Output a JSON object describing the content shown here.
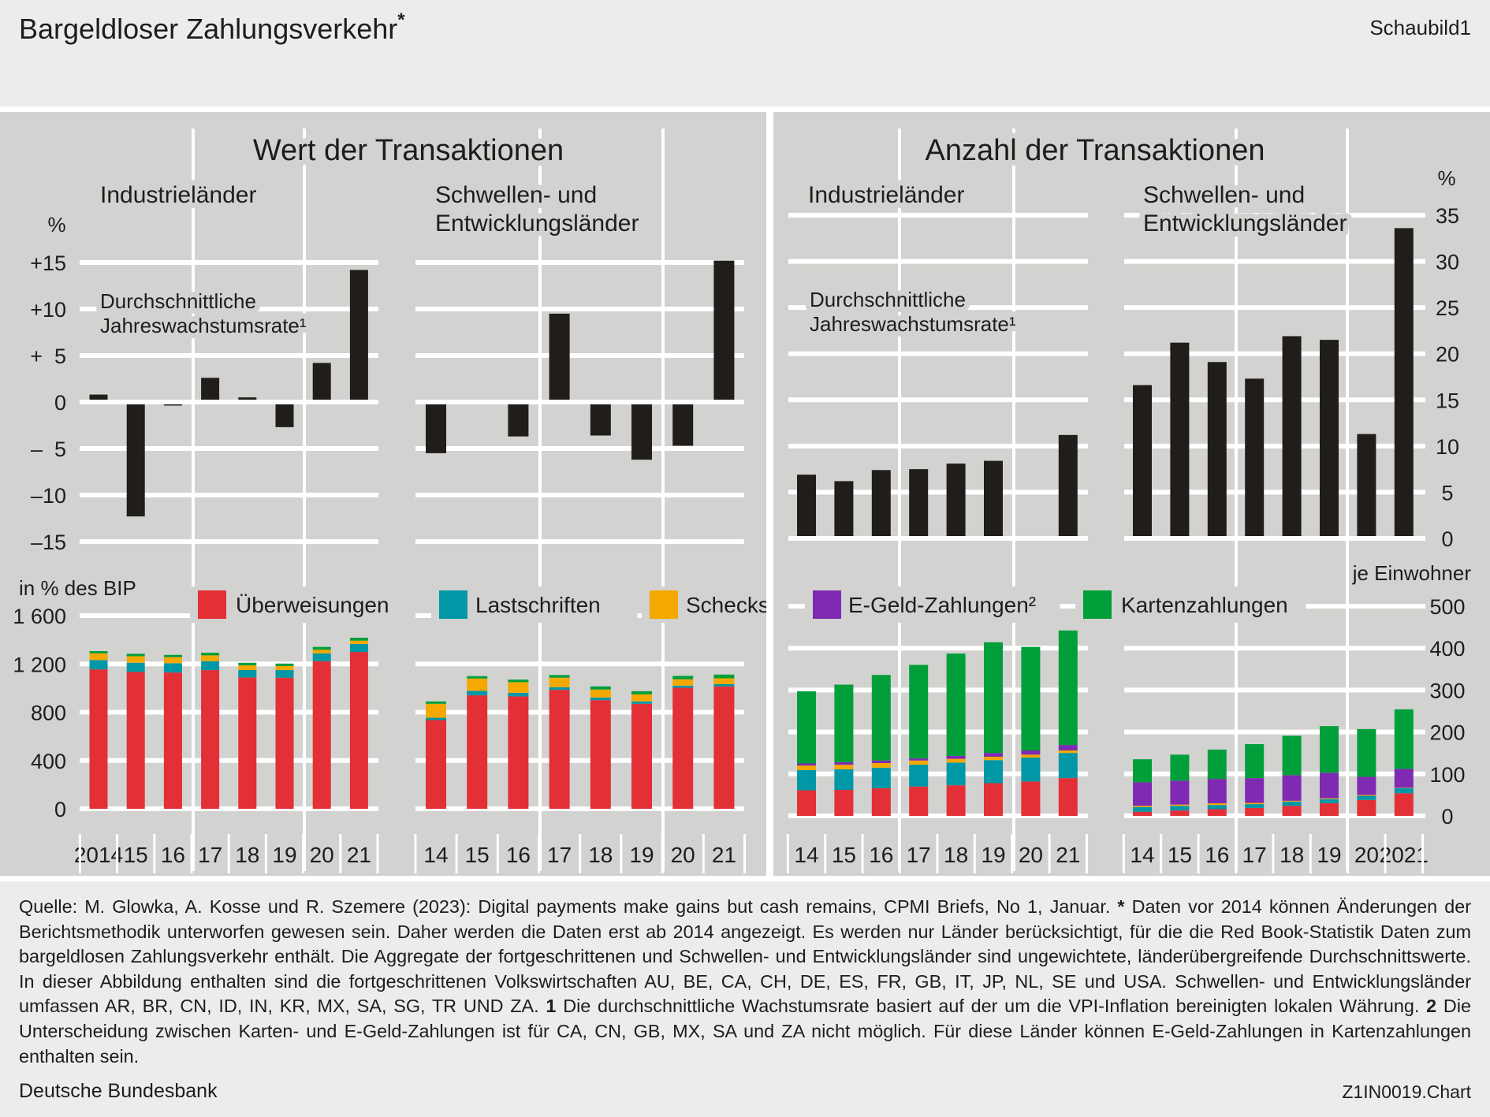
{
  "header": {
    "title": "Bargeldloser Zahlungsverkehr",
    "title_mark": "*",
    "figure_label": "Schaubild1"
  },
  "sections": {
    "value": {
      "title": "Wert der Transaktionen",
      "industrial": "Industrieländer",
      "emerging_line1": "Schwellen- und",
      "emerging_line2": "Entwicklungsländer",
      "annotation_line1": "Durchschnittliche",
      "annotation_line2": "Jahreswachstumsrate¹",
      "top_unit": "%",
      "bottom_unit": "in % des BIP"
    },
    "count": {
      "title": "Anzahl der Transaktionen",
      "industrial": "Industrieländer",
      "emerging_line1": "Schwellen- und",
      "emerging_line2": "Entwicklungsländer",
      "annotation_line1": "Durchschnittliche",
      "annotation_line2": "Jahreswachstumsrate¹",
      "top_unit": "%",
      "bottom_unit": "je Einwohner"
    }
  },
  "legend": [
    {
      "label": "Überweisungen",
      "color": "#e32f36"
    },
    {
      "label": "Lastschriften",
      "color": "#0097a7"
    },
    {
      "label": "Schecks",
      "color": "#f5a800"
    },
    {
      "label": "E-Geld-Zahlungen²",
      "color": "#7f2ab3"
    },
    {
      "label": "Kartenzahlungen",
      "color": "#009f3a"
    }
  ],
  "colors": {
    "growth_bar": "#201d1b",
    "panel_background": "#d2d2d0",
    "grid": "#ffffff"
  },
  "chart_data": [
    {
      "type": "bar",
      "group": "Wert der Transaktionen",
      "region": "Industrieländer",
      "values": [
        0.8,
        -12.3,
        -0.3,
        2.6,
        0.5,
        -2.7,
        4.2,
        14.2
      ],
      "ylim": [
        -15,
        15
      ],
      "y_ticks": [
        15,
        10,
        5,
        0,
        -5,
        -10,
        -15
      ],
      "y_tick_labels": [
        "+15",
        "+10",
        "+  5",
        "0",
        "–  5",
        "–10",
        "–15"
      ],
      "grid": true
    },
    {
      "type": "bar",
      "group": "Wert der Transaktionen",
      "region": "Schwellen- und Entwicklungsländer",
      "values": [
        -5.5,
        null,
        -3.7,
        9.5,
        -3.6,
        -6.2,
        -4.7,
        15.2
      ],
      "ylim": [
        -15,
        15
      ],
      "y_ticks": [
        15,
        10,
        5,
        0,
        -5,
        -10,
        -15
      ],
      "grid": true
    },
    {
      "type": "bar",
      "group": "Anzahl der Transaktionen",
      "region": "Industrieländer",
      "values": [
        6.9,
        6.2,
        7.4,
        7.5,
        8.1,
        8.4,
        null,
        11.2
      ],
      "ylim": [
        0,
        35
      ],
      "y_ticks": [
        35,
        30,
        25,
        20,
        15,
        10,
        5,
        0
      ],
      "grid": true
    },
    {
      "type": "bar",
      "group": "Anzahl der Transaktionen",
      "region": "Schwellen- und Entwicklungsländer",
      "values": [
        16.6,
        21.2,
        19.1,
        17.3,
        21.9,
        21.5,
        11.3,
        33.6
      ],
      "ylim": [
        0,
        35
      ],
      "y_ticks": [
        35,
        30,
        25,
        20,
        15,
        10,
        5,
        0
      ],
      "y_tick_labels": [
        "35",
        "30",
        "25",
        "20",
        "15",
        "10",
        "5",
        "0"
      ],
      "grid": true
    },
    {
      "type": "bar",
      "stacked": true,
      "group": "Wert der Transaktionen",
      "region": "Industrieländer",
      "categories": [
        "2014",
        "15",
        "16",
        "17",
        "18",
        "19",
        "20",
        "21"
      ],
      "ylim": [
        0,
        1600
      ],
      "y_ticks": [
        1600,
        1200,
        800,
        400,
        0
      ],
      "y_tick_labels": [
        "1 600",
        "1 200",
        "800",
        "400",
        "0"
      ],
      "grid": true,
      "series": [
        {
          "name": "Überweisungen",
          "color": "#e32f36",
          "values": [
            1155,
            1134,
            1129,
            1149,
            1088,
            1086,
            1223,
            1299
          ]
        },
        {
          "name": "Lastschriften",
          "color": "#0097a7",
          "values": [
            77,
            76,
            77,
            74,
            61,
            63,
            65,
            66
          ]
        },
        {
          "name": "Schecks",
          "color": "#f5a800",
          "values": [
            56,
            54,
            50,
            48,
            39,
            33,
            29,
            28
          ]
        },
        {
          "name": "Kartenzahlungen",
          "color": "#009f3a",
          "values": [
            18,
            20,
            19,
            22,
            22,
            21,
            24,
            24
          ]
        }
      ]
    },
    {
      "type": "bar",
      "stacked": true,
      "group": "Wert der Transaktionen",
      "region": "Schwellen- und Entwicklungsländer",
      "categories": [
        "14",
        "15",
        "16",
        "17",
        "18",
        "19",
        "20",
        "21"
      ],
      "ylim": [
        0,
        1600
      ],
      "y_ticks": [
        1600,
        1200,
        800,
        400,
        0
      ],
      "grid": true,
      "series": [
        {
          "name": "Überweisungen",
          "color": "#e32f36",
          "values": [
            735,
            940,
            931,
            985,
            900,
            870,
            1003,
            1014
          ]
        },
        {
          "name": "Lastschriften",
          "color": "#0097a7",
          "values": [
            19,
            37,
            30,
            22,
            22,
            19,
            17,
            19
          ]
        },
        {
          "name": "Schecks",
          "color": "#f5a800",
          "values": [
            116,
            102,
            88,
            79,
            66,
            59,
            53,
            48
          ]
        },
        {
          "name": "Kartenzahlungen",
          "color": "#009f3a",
          "values": [
            19,
            20,
            21,
            22,
            26,
            26,
            28,
            31
          ]
        }
      ]
    },
    {
      "type": "bar",
      "stacked": true,
      "group": "Anzahl der Transaktionen",
      "region": "Industrieländer",
      "categories": [
        "14",
        "15",
        "16",
        "17",
        "18",
        "19",
        "20",
        "21"
      ],
      "ylim": [
        0,
        500
      ],
      "y_ticks": [
        500,
        400,
        300,
        200,
        100,
        0
      ],
      "grid": true,
      "series": [
        {
          "name": "Überweisungen",
          "color": "#e32f36",
          "values": [
            61,
            62,
            66,
            70,
            73,
            78,
            82,
            90
          ]
        },
        {
          "name": "Lastschriften",
          "color": "#0097a7",
          "values": [
            48,
            49,
            49,
            52,
            54,
            55,
            57,
            60
          ]
        },
        {
          "name": "Schecks",
          "color": "#f5a800",
          "values": [
            11,
            11,
            11,
            10,
            9,
            8,
            7,
            6
          ]
        },
        {
          "name": "E-Geld-Zahlungen²",
          "color": "#7f2ab3",
          "values": [
            5,
            6,
            6,
            5,
            7,
            9,
            10,
            13
          ]
        },
        {
          "name": "Kartenzahlungen",
          "color": "#009f3a",
          "values": [
            172,
            185,
            204,
            223,
            244,
            264,
            247,
            273
          ]
        }
      ]
    },
    {
      "type": "bar",
      "stacked": true,
      "group": "Anzahl der Transaktionen",
      "region": "Schwellen- und Entwicklungsländer",
      "categories": [
        "14",
        "15",
        "16",
        "17",
        "18",
        "19",
        "20",
        "2021"
      ],
      "ylim": [
        0,
        500
      ],
      "y_ticks": [
        500,
        400,
        300,
        200,
        100,
        0
      ],
      "y_tick_labels": [
        "500",
        "400",
        "300",
        "200",
        "100",
        "0"
      ],
      "grid": true,
      "series": [
        {
          "name": "Überweisungen",
          "color": "#e32f36",
          "values": [
            10,
            13,
            16,
            19,
            24,
            30,
            38,
            54
          ]
        },
        {
          "name": "Lastschriften",
          "color": "#0097a7",
          "values": [
            11,
            11,
            10,
            9,
            10,
            10,
            10,
            12
          ]
        },
        {
          "name": "Schecks",
          "color": "#f5a800",
          "values": [
            3,
            3,
            4,
            3,
            2,
            2,
            2,
            1
          ]
        },
        {
          "name": "E-Geld-Zahlungen²",
          "color": "#7f2ab3",
          "values": [
            56,
            57,
            58,
            59,
            61,
            61,
            43,
            45
          ]
        },
        {
          "name": "Kartenzahlungen",
          "color": "#009f3a",
          "values": [
            55,
            62,
            70,
            81,
            94,
            111,
            114,
            142
          ]
        }
      ]
    }
  ],
  "footer": {
    "source": "Quelle: M. Glowka, A. Kosse und R. Szemere (2023): Digital payments make gains but cash remains, CPMI Briefs, No 1, Januar.",
    "note_star_marker": "*",
    "note_star": "Daten vor 2014 können Änderungen der Berichtsmethodik unterworfen gewesen sein. Daher werden die Daten erst ab 2014 angezeigt. Es werden nur Länder berücksichtigt, für die die Red Book-Statistik Daten zum bargeldlosen Zahlungsverkehr enthält. Die Aggregate der fortgeschrittenen und Schwellen- und Entwicklungsländer sind ungewichtete, länderübergreifende Durchschnittswerte. In dieser Abbildung enthalten sind die fortgeschrittenen Volkswirtschaften AU, BE, CA, CH, DE, ES, FR, GB, IT, JP, NL, SE und USA. Schwellen- und Entwicklungsländer umfassen AR, BR, CN, ID, IN, KR, MX, SA, SG, TR UND ZA.",
    "note1_marker": "1",
    "note1": "Die durchschnittli­che Wachstumsrate basiert auf der um die VPI-Inflation bereinigten lokalen Währung.",
    "note2_marker": "2",
    "note2": "Die Unterscheidung zwischen Karten- und E-Geld-Zahlungen ist für CA, CN, GB, MX, SA und ZA nicht möglich. Für diese Länder können E-Geld-Zahlungen in Kartenzahlungen enthalten sein.",
    "publisher": "Deutsche Bundesbank",
    "chart_id": "Z1IN0019.Chart"
  }
}
